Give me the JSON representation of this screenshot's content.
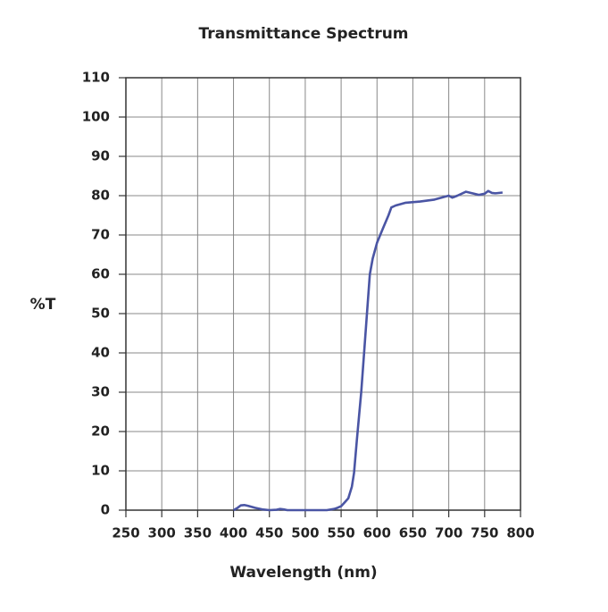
{
  "chart_data": {
    "type": "line",
    "title": "Transmittance Spectrum",
    "x_label": "Wavelength (nm)",
    "y_label": "%T",
    "x": [
      400,
      405,
      410,
      415,
      420,
      430,
      440,
      450,
      460,
      465,
      470,
      475,
      500,
      530,
      540,
      545,
      550,
      555,
      560,
      565,
      568,
      572,
      575,
      578,
      582,
      586,
      590,
      594,
      600,
      609,
      616,
      620,
      626,
      640,
      660,
      680,
      700,
      705,
      712,
      724,
      735,
      742,
      750,
      755,
      760,
      765,
      775
    ],
    "values": [
      0,
      0.5,
      1.2,
      1.3,
      1.1,
      0.6,
      0.2,
      0,
      0.1,
      0.3,
      0.2,
      0,
      0,
      0,
      0.3,
      0.6,
      1,
      2,
      3,
      6,
      9.5,
      18,
      24,
      30,
      40,
      50,
      60,
      64,
      68,
      72,
      75,
      77,
      77.5,
      78.2,
      78.5,
      79,
      80,
      79.5,
      80,
      81,
      80.5,
      80.2,
      80.5,
      81.2,
      80.7,
      80.6,
      80.8
    ],
    "color": "#4a55a4",
    "xlim": [
      250,
      800
    ],
    "xticks": [
      250,
      300,
      350,
      400,
      450,
      500,
      550,
      600,
      650,
      700,
      750,
      800
    ],
    "ylim": [
      0,
      110
    ],
    "yticks": [
      0,
      10,
      20,
      30,
      40,
      50,
      60,
      70,
      80,
      90,
      100,
      110
    ],
    "grid": true
  }
}
